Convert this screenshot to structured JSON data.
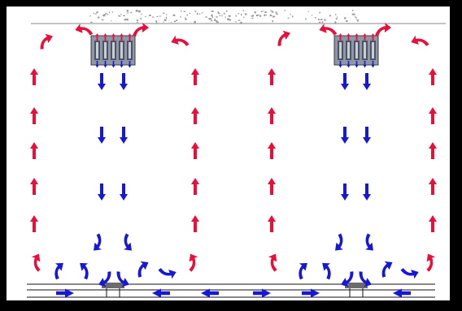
{
  "diagram": {
    "colors": {
      "frame": "#000000",
      "background": "#ffffff",
      "warm_arrow": "#e8103a",
      "cool_arrow": "#1717d6",
      "ceiling_texture": "#9a9a9a",
      "unit_body": "#8f97a6",
      "unit_fins": "#4b5563",
      "floor_lines": "#111111",
      "diffuser": "#6b6b6b"
    },
    "icons": {
      "warm_arrow": "red-airflow-arrow-icon",
      "cool_arrow": "blue-airflow-arrow-icon",
      "unit": "ceiling-cooling-unit-icon",
      "diffuser": "floor-diffuser-icon"
    }
  }
}
